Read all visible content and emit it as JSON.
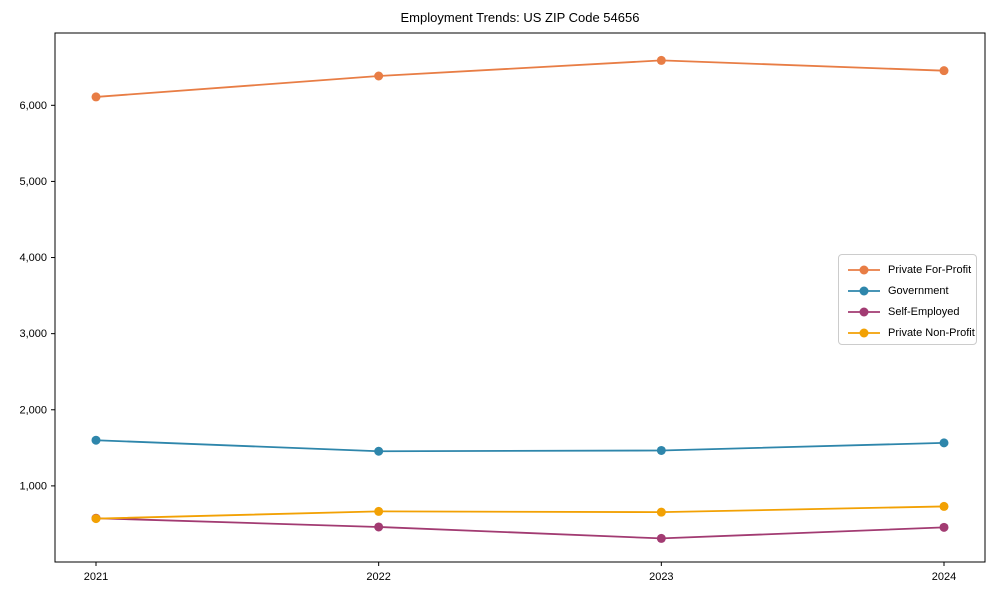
{
  "title": "Employment Trends: US ZIP Code 54656",
  "colors": {
    "private_for_profit": "#E87D45",
    "government": "#2E86AB",
    "self_employed": "#A23B72",
    "private_non_profit": "#F2A104",
    "axis": "#000000",
    "legend_border": "#cccccc"
  },
  "chart_data": {
    "type": "line",
    "title": "Employment Trends: US ZIP Code 54656",
    "xlabel": "",
    "ylabel": "",
    "categories": [
      "2021",
      "2022",
      "2023",
      "2024"
    ],
    "x": [
      2021,
      2022,
      2023,
      2024
    ],
    "series": [
      {
        "name": "Private For-Profit",
        "color": "#E87D45",
        "values": [
          6110,
          6385,
          6590,
          6455
        ]
      },
      {
        "name": "Government",
        "color": "#2E86AB",
        "values": [
          1600,
          1455,
          1465,
          1565
        ]
      },
      {
        "name": "Self-Employed",
        "color": "#A23B72",
        "values": [
          575,
          460,
          310,
          455
        ]
      },
      {
        "name": "Private Non-Profit",
        "color": "#F2A104",
        "values": [
          570,
          665,
          655,
          730
        ]
      }
    ],
    "ylim": [
      0,
      6950
    ],
    "yticks": [
      1000,
      2000,
      3000,
      4000,
      5000,
      6000
    ],
    "ytick_labels": [
      "1,000",
      "2,000",
      "3,000",
      "4,000",
      "5,000",
      "6,000"
    ],
    "grid": false,
    "legend_position": "right-middle"
  }
}
